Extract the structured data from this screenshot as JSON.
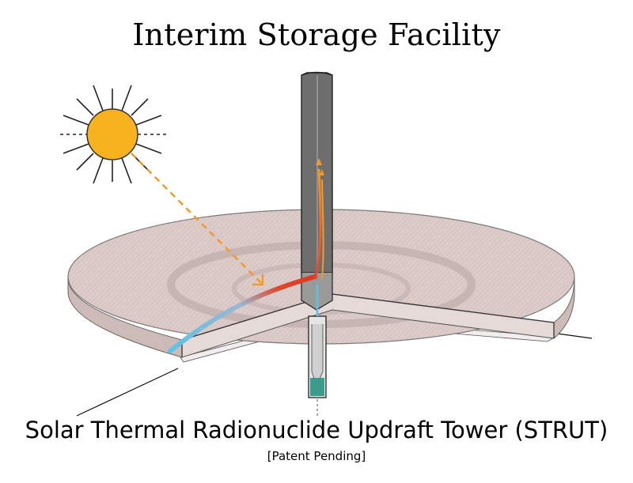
{
  "title": "Interim Storage Facility",
  "caption": "Solar Thermal Radionuclide Updraft Tower (STRUT)",
  "subcaption": "[Patent Pending]",
  "colors": {
    "sun": "#F7B21E",
    "sun_outline": "#333333",
    "sunray_arrow": "#F39A2A",
    "cold_air": "#5EC2E6",
    "hot_air": "#E0452B",
    "collector_fill": "#D9C8C6",
    "tower_fill": "#6E6E6E",
    "liquid": "#3C9C8C"
  }
}
